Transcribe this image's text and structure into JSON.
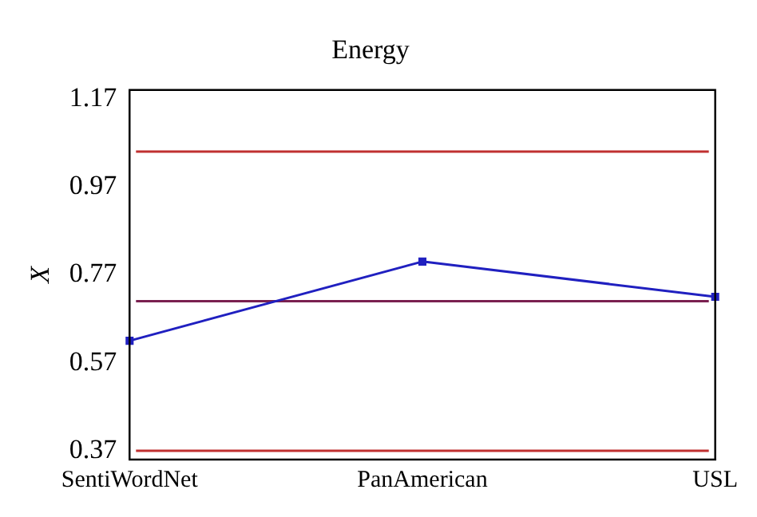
{
  "chart_data": {
    "type": "line",
    "title": "Energy",
    "ylabel": "X",
    "categories": [
      "SentiWordNet",
      "PanAmerican",
      "USL"
    ],
    "series": [
      {
        "color": "#2020c0",
        "values": [
          0.62,
          0.8,
          0.72
        ]
      }
    ],
    "ylim": [
      0.35,
      1.19
    ],
    "yticks": [
      0.37,
      0.57,
      0.77,
      0.97,
      1.17
    ],
    "ref_lines": [
      {
        "axis": "y",
        "value": 1.05,
        "color": "#c03030"
      },
      {
        "axis": "y",
        "value": 0.71,
        "color": "#7a2050"
      },
      {
        "axis": "y",
        "value": 0.37,
        "color": "#c03030"
      }
    ],
    "grid": false,
    "legend": false,
    "marker": "square",
    "line_style": "solid"
  }
}
